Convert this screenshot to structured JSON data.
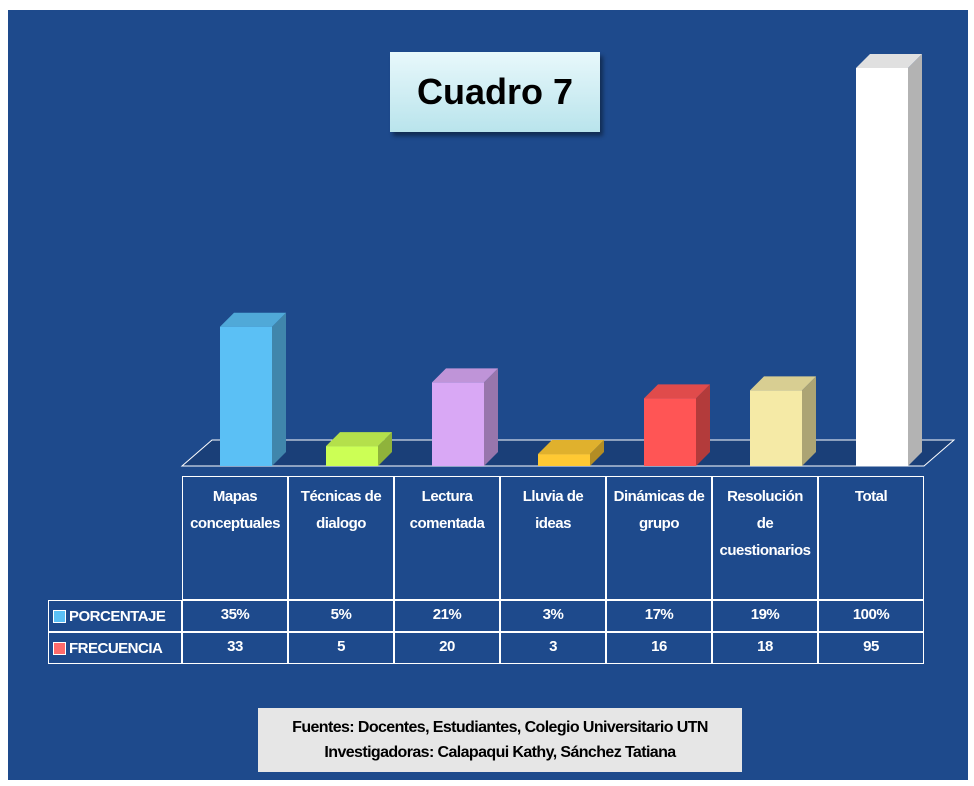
{
  "chart_data": {
    "type": "bar3d",
    "title": "Cuadro 7",
    "categories": [
      "Mapas conceptuales",
      "Técnicas de dialogo",
      "Lectura comentada",
      "Lluvia de ideas",
      "Dinámicas de grupo",
      "Resolución de cuestionarios",
      "Total"
    ],
    "colors": [
      "#5bc0f5",
      "#ccff55",
      "#d9a8f5",
      "#ffc933",
      "#ff5555",
      "#f5eaa6",
      "#ffffff"
    ],
    "series": [
      {
        "name": "PORCENTAJE",
        "color": "#5bc0f5",
        "values": [
          35,
          5,
          21,
          3,
          17,
          19,
          100
        ],
        "value_labels": [
          "35%",
          "5%",
          "21%",
          "3%",
          "17%",
          "19%",
          "100%"
        ]
      },
      {
        "name": "FRECUENCIA",
        "color": "#ff6b6b",
        "values": [
          33,
          5,
          20,
          3,
          16,
          18,
          95
        ]
      }
    ],
    "ylim": [
      0,
      100
    ],
    "notes": [
      "Fuentes: Docentes, Estudiantes, Colegio Universitario UTN",
      "Investigadoras: Calapaqui Kathy, Sánchez Tatiana"
    ]
  }
}
